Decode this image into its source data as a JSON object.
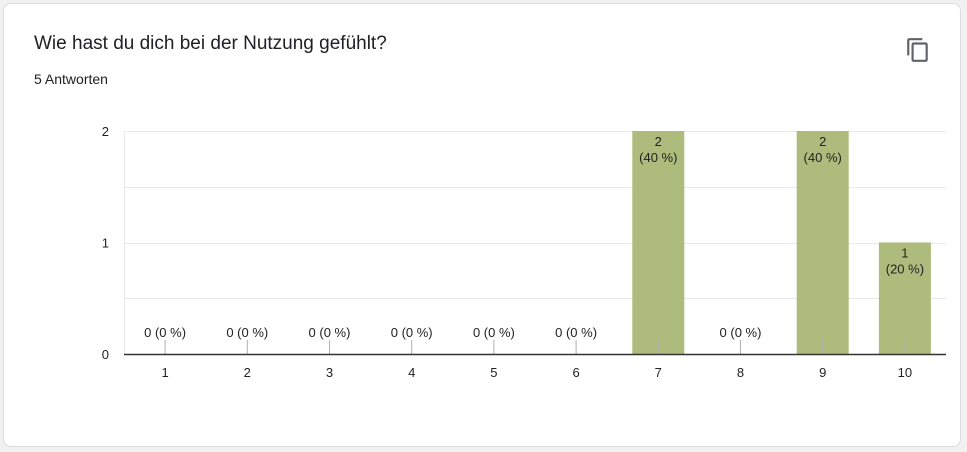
{
  "card": {
    "title": "Wie hast du dich bei der Nutzung gefühlt?",
    "response_count": "5 Antworten",
    "copy_icon": "copy-icon"
  },
  "colors": {
    "bar": "#adbc7c",
    "grid": "#e9e9e9",
    "axis": "#333333",
    "text": "#222222"
  },
  "chart_data": {
    "type": "bar",
    "title": "Wie hast du dich bei der Nutzung gefühlt?",
    "xlabel": "",
    "ylabel": "",
    "categories": [
      "1",
      "2",
      "3",
      "4",
      "5",
      "6",
      "7",
      "8",
      "9",
      "10"
    ],
    "values": [
      0,
      0,
      0,
      0,
      0,
      0,
      2,
      0,
      2,
      1
    ],
    "data_labels": [
      [
        "0 (0 %)"
      ],
      [
        "0 (0 %)"
      ],
      [
        "0 (0 %)"
      ],
      [
        "0 (0 %)"
      ],
      [
        "0 (0 %)"
      ],
      [
        "0 (0 %)"
      ],
      [
        "2",
        "(40 %)"
      ],
      [
        "0 (0 %)"
      ],
      [
        "2",
        "(40 %)"
      ],
      [
        "1",
        "(20 %)"
      ]
    ],
    "ylim": [
      0,
      2
    ],
    "yticks": [
      "0",
      "1",
      "2"
    ],
    "grid": true,
    "legend": "none"
  }
}
